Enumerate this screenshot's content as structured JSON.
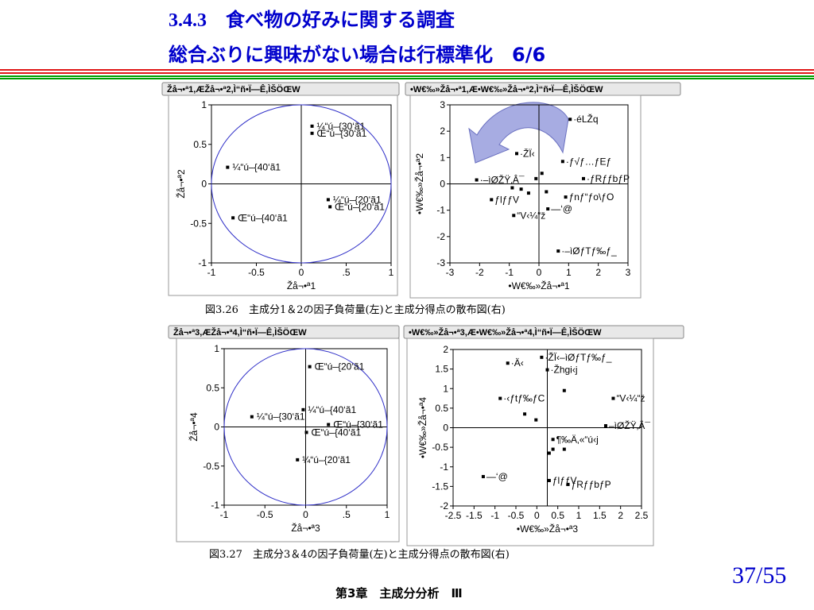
{
  "slide": {
    "title_line1": "3.4.3　食べ物の好みに関する調査",
    "title_line2": "総合ぶりに興味がない場合は行標準化　6/6",
    "caption_top": "図3.26　主成分1＆2の因子負荷量(左)と主成分得点の散布図(右)",
    "caption_bottom": "図3.27　主成分3＆4の因子負荷量(左)と主成分得点の散布図(右)",
    "footer": "第3章　主成分分析　Ⅲ",
    "page_number": "37/55"
  },
  "colors": {
    "title": "#0000cc",
    "rule_red": "#e01818",
    "rule_green": "#00a000",
    "circle": "#3030c8",
    "arrow": "#8a90d8"
  },
  "chart_data": [
    {
      "type": "scatter",
      "panel_label": "Žå¬•ª1,ÆŽå¬•ª2,Ì“ñ•Ï—Ê,ÌŠÖŒW",
      "xlabel": "Žå¬•ª1",
      "ylabel": "Žå¬•ª2",
      "xlim": [
        -1,
        1
      ],
      "ylim": [
        -1,
        1
      ],
      "xticks": [
        "-1",
        "-0.5",
        "0",
        ".5",
        "1"
      ],
      "yticks": [
        "1",
        "0.5",
        "0",
        "-0.5",
        "-1"
      ],
      "unit_circle": true,
      "points": [
        {
          "x": 0.12,
          "y": 0.73,
          "label": "¼“ú–{30‘ã1"
        },
        {
          "x": 0.12,
          "y": 0.64,
          "label": "Œ“ú–{30‘ã1"
        },
        {
          "x": -0.82,
          "y": 0.21,
          "label": "¼“ú–{40‘ã1"
        },
        {
          "x": -0.76,
          "y": -0.43,
          "label": "Œ“ú–{40‘ã1"
        },
        {
          "x": 0.3,
          "y": -0.2,
          "label": "¼“ú–{20‘ã1"
        },
        {
          "x": 0.32,
          "y": -0.29,
          "label": "Œ“ú–{20‘ã1"
        }
      ]
    },
    {
      "type": "scatter",
      "panel_label": "•W€‰»Žå¬•ª1,Æ•W€‰»Žå¬•ª2,Ì“ñ•Ï—Ê,ÌŠÖŒW",
      "xlabel": "•W€‰»Žå¬•ª1",
      "ylabel": "•W€‰»Žå¬•ª2",
      "xlim": [
        -3,
        3
      ],
      "ylim": [
        -3,
        3
      ],
      "xticks": [
        "-3",
        "-2",
        "-1",
        "0",
        "1",
        "2",
        "3"
      ],
      "yticks": [
        "3",
        "2",
        "1",
        "0",
        "-1",
        "-2",
        "-3"
      ],
      "points": [
        {
          "x": 1.05,
          "y": 2.45,
          "label": "·éLŽq"
        },
        {
          "x": -0.75,
          "y": 1.15,
          "label": "·ŽÏ‹"
        },
        {
          "x": 0.8,
          "y": 0.85,
          "label": "·ƒ√ƒ…ƒEƒ"
        },
        {
          "x": 1.5,
          "y": 0.2,
          "label": "·ƒRƒƒbƒP"
        },
        {
          "x": -2.1,
          "y": 0.15,
          "label": "·–ìØŽŸ‚Â¯"
        },
        {
          "x": -1.6,
          "y": -0.6,
          "label": "ƒlƒƒV"
        },
        {
          "x": 0.9,
          "y": -0.5,
          "label": "ƒnƒ“ƒo\\ƒO"
        },
        {
          "x": 0.3,
          "y": -0.95,
          "label": "—‘@"
        },
        {
          "x": -0.85,
          "y": -1.2,
          "label": "“V‹¼“ž"
        },
        {
          "x": 0.65,
          "y": -2.55,
          "label": "·–ìØƒTƒ‰ƒ_"
        },
        {
          "x": 0.1,
          "y": 0.4,
          "label": ""
        },
        {
          "x": -0.1,
          "y": 0.2,
          "label": ""
        },
        {
          "x": -0.6,
          "y": -0.2,
          "label": ""
        },
        {
          "x": -0.35,
          "y": -0.35,
          "label": ""
        },
        {
          "x": 0.25,
          "y": -0.3,
          "label": ""
        },
        {
          "x": -0.9,
          "y": -0.15,
          "label": ""
        }
      ]
    },
    {
      "type": "scatter",
      "panel_label": "Žå¬•ª3,ÆŽå¬•ª4,Ì“ñ•Ï—Ê,ÌŠÖŒW",
      "xlabel": "Žå¬•ª3",
      "ylabel": "Žå¬•ª4",
      "xlim": [
        -1,
        1
      ],
      "ylim": [
        -1,
        1
      ],
      "xticks": [
        "-1",
        "-0.5",
        "0",
        ".5",
        "1"
      ],
      "yticks": [
        "1",
        "0.5",
        "0",
        "-0.5",
        "-1"
      ],
      "unit_circle": true,
      "points": [
        {
          "x": 0.05,
          "y": 0.77,
          "label": "Œ“ú–{20‘ã1"
        },
        {
          "x": -0.03,
          "y": 0.22,
          "label": "¼“ú–{40‘ã1"
        },
        {
          "x": -0.66,
          "y": 0.13,
          "label": "¼“ú–{30‘ã1"
        },
        {
          "x": 0.28,
          "y": 0.03,
          "label": "Œ“ú–{30‘ã1"
        },
        {
          "x": 0.01,
          "y": -0.07,
          "label": "Œ“ú–{40‘ã1"
        },
        {
          "x": -0.1,
          "y": -0.42,
          "label": "¼“ú–{20‘ã1"
        }
      ]
    },
    {
      "type": "scatter",
      "panel_label": "•W€‰»Žå¬•ª3,Æ•W€‰»Žå¬•ª4,Ì“ñ•Ï—Ê,ÌŠÖŒW",
      "xlabel": "•W€‰»Žå¬•ª3",
      "ylabel": "•W€‰»Žå¬•ª4",
      "xlim": [
        -2.5,
        2.5
      ],
      "ylim": [
        -2,
        2
      ],
      "xticks": [
        "-2.5",
        "-1.5",
        "-1",
        "-0.5",
        "0",
        "0.5",
        "1",
        "1.5",
        "2",
        "2.5"
      ],
      "yticks": [
        "2",
        "1.5",
        "1",
        "0.5",
        "0",
        "-0.5",
        "-1",
        "-1.5",
        "-2"
      ],
      "points": [
        {
          "x": -1.05,
          "y": 1.65,
          "label": "·Ä‹"
        },
        {
          "x": -0.15,
          "y": 1.8,
          "label": "·ŽÏ‹–ìØƒTƒ‰ƒ_"
        },
        {
          "x": 0.0,
          "y": 1.48,
          "label": "·Žhgi‹j"
        },
        {
          "x": -1.25,
          "y": 0.75,
          "label": "·‹ƒtƒ‰ƒC"
        },
        {
          "x": 1.75,
          "y": 0.75,
          "label": "“V‹¼“ž"
        },
        {
          "x": 1.55,
          "y": 0.05,
          "label": "–ìØŽŸ‚Â¯"
        },
        {
          "x": 0.15,
          "y": -0.3,
          "label": "¶‰Ä‚«“ú‹j"
        },
        {
          "x": -1.7,
          "y": -1.25,
          "label": "—‘@"
        },
        {
          "x": 0.05,
          "y": -1.35,
          "label": "ƒlƒƒV"
        },
        {
          "x": 0.55,
          "y": -1.45,
          "label": "ƒRƒƒbƒP"
        },
        {
          "x": 0.45,
          "y": 0.95,
          "label": ""
        },
        {
          "x": -0.6,
          "y": 0.35,
          "label": ""
        },
        {
          "x": 0.15,
          "y": -0.55,
          "label": ""
        },
        {
          "x": 0.45,
          "y": -0.55,
          "label": ""
        },
        {
          "x": 0.05,
          "y": -0.65,
          "label": ""
        },
        {
          "x": -0.3,
          "y": 0.2,
          "label": ""
        }
      ]
    }
  ]
}
